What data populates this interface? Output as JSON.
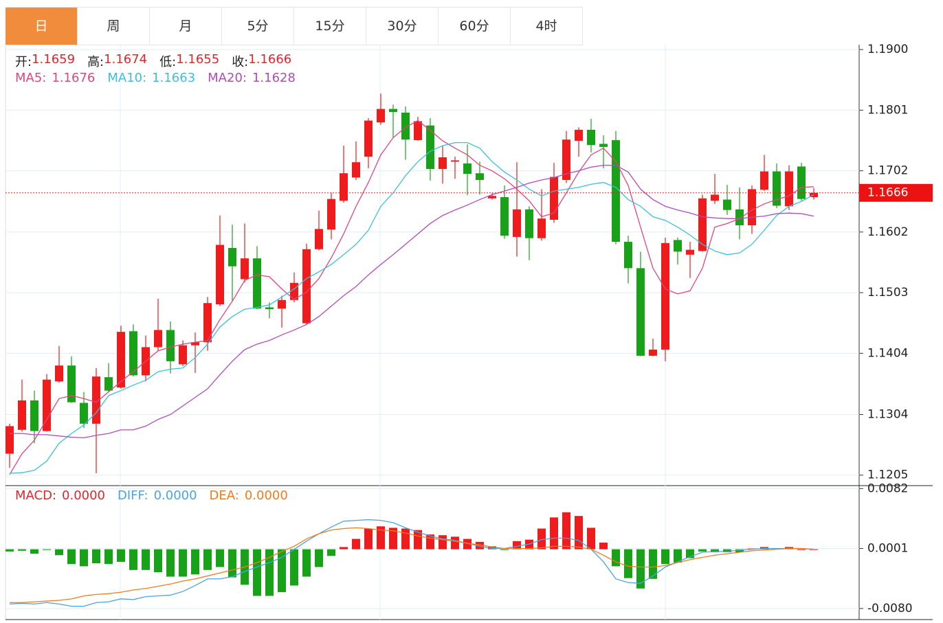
{
  "tabs": [
    "日",
    "周",
    "月",
    "5分",
    "15分",
    "30分",
    "60分",
    "4时"
  ],
  "active_tab": 0,
  "chart_data": [
    {
      "type": "candlestick",
      "ylim": [
        1.1189,
        1.1908
      ],
      "yticks": [
        {
          "value": 1.19,
          "label": "1.1900"
        },
        1.1801,
        1.1702,
        1.1602,
        1.1503,
        1.1404,
        1.1304,
        1.1205
      ],
      "grid": true,
      "up_color": "#ee1c1c",
      "down_color": "#1aa11a",
      "last_price": 1.1666,
      "ohlc_legend": [
        {
          "label": "开:",
          "value": 1.1659
        },
        {
          "label": "高:",
          "value": 1.1674
        },
        {
          "label": "低:",
          "value": 1.1655
        },
        {
          "label": "收:",
          "value": 1.1666
        }
      ],
      "open": [
        1.124,
        1.1279,
        1.1327,
        1.1277,
        1.1358,
        1.1384,
        1.1323,
        1.1289,
        1.1365,
        1.1348,
        1.144,
        1.1368,
        1.1414,
        1.1442,
        1.1386,
        1.1417,
        1.1422,
        1.1484,
        1.1576,
        1.1525,
        1.1559,
        1.1479,
        1.1477,
        1.1491,
        1.1453,
        1.1574,
        1.1606,
        1.1653,
        1.1691,
        1.1725,
        1.1781,
        1.1803,
        1.1797,
        1.1752,
        1.1776,
        1.1705,
        1.1717,
        1.1714,
        1.1698,
        1.1657,
        1.1659,
        1.1594,
        1.1639,
        1.1592,
        1.1622,
        1.1687,
        1.1751,
        1.1769,
        1.1746,
        1.1752,
        1.1586,
        1.1543,
        1.14,
        1.141,
        1.1589,
        1.1565,
        1.1571,
        1.1653,
        1.1655,
        1.1639,
        1.1613,
        1.1671,
        1.1701,
        1.1644,
        1.1709,
        1.1659
      ],
      "high": [
        1.1289,
        1.1361,
        1.1343,
        1.137,
        1.1416,
        1.1399,
        1.1341,
        1.138,
        1.1388,
        1.1449,
        1.1451,
        1.1433,
        1.1493,
        1.1456,
        1.1425,
        1.1438,
        1.1496,
        1.1629,
        1.1614,
        1.1616,
        1.1579,
        1.1487,
        1.1498,
        1.1536,
        1.1583,
        1.1637,
        1.1666,
        1.1743,
        1.175,
        1.1788,
        1.1828,
        1.181,
        1.1807,
        1.179,
        1.1788,
        1.1743,
        1.1725,
        1.1745,
        1.1717,
        1.1666,
        1.1678,
        1.1716,
        1.1644,
        1.1672,
        1.1715,
        1.1767,
        1.1773,
        1.1787,
        1.176,
        1.1767,
        1.1596,
        1.157,
        1.1428,
        1.1593,
        1.1593,
        1.1586,
        1.1663,
        1.1697,
        1.1679,
        1.1675,
        1.1678,
        1.1728,
        1.1714,
        1.1711,
        1.1715,
        1.1674
      ],
      "low": [
        1.1217,
        1.1276,
        1.1257,
        1.1276,
        1.1356,
        1.1323,
        1.1282,
        1.1208,
        1.1341,
        1.1346,
        1.1366,
        1.1358,
        1.1408,
        1.1371,
        1.1383,
        1.1372,
        1.1408,
        1.1481,
        1.1489,
        1.152,
        1.1476,
        1.1461,
        1.1446,
        1.1487,
        1.1451,
        1.1572,
        1.159,
        1.165,
        1.1687,
        1.1706,
        1.1777,
        1.1756,
        1.172,
        1.1751,
        1.1686,
        1.1681,
        1.1689,
        1.1662,
        1.1663,
        1.1655,
        1.1591,
        1.1562,
        1.1556,
        1.1588,
        1.1617,
        1.1682,
        1.1725,
        1.1732,
        1.1706,
        1.1582,
        1.1518,
        1.1399,
        1.1399,
        1.1391,
        1.1549,
        1.1527,
        1.157,
        1.1648,
        1.163,
        1.159,
        1.1599,
        1.1669,
        1.1641,
        1.1638,
        1.1653,
        1.1655
      ],
      "close": [
        1.1285,
        1.1327,
        1.1277,
        1.1361,
        1.1384,
        1.1324,
        1.1289,
        1.1366,
        1.1343,
        1.1439,
        1.1368,
        1.1414,
        1.1442,
        1.1391,
        1.1417,
        1.1422,
        1.1486,
        1.1581,
        1.1546,
        1.1559,
        1.1477,
        1.1476,
        1.1491,
        1.1519,
        1.1574,
        1.1607,
        1.1656,
        1.1698,
        1.1716,
        1.1784,
        1.1803,
        1.1798,
        1.1753,
        1.1783,
        1.1705,
        1.1724,
        1.1719,
        1.1697,
        1.1687,
        1.1661,
        1.1596,
        1.1639,
        1.1592,
        1.1624,
        1.1692,
        1.1753,
        1.1769,
        1.1744,
        1.1741,
        1.1586,
        1.1543,
        1.14,
        1.141,
        1.1584,
        1.157,
        1.1573,
        1.1657,
        1.1663,
        1.1638,
        1.1613,
        1.1672,
        1.1701,
        1.1645,
        1.1701,
        1.1656,
        1.1666
      ],
      "series": [
        {
          "name": "MA5:",
          "color": "#e0457b",
          "current": 1.1676,
          "values": [
            1.1206,
            1.124,
            1.1262,
            1.1296,
            1.133,
            1.1335,
            1.133,
            1.1324,
            1.1341,
            1.1358,
            1.1374,
            1.1391,
            1.1408,
            1.1414,
            1.1419,
            1.1422,
            1.1425,
            1.1459,
            1.1489,
            1.1523,
            1.1532,
            1.1529,
            1.1509,
            1.1492,
            1.1504,
            1.1526,
            1.156,
            1.1599,
            1.1644,
            1.1683,
            1.1728,
            1.1756,
            1.1773,
            1.1784,
            1.1768,
            1.1751,
            1.1739,
            1.1728,
            1.1711,
            1.1702,
            1.1689,
            1.1672,
            1.1653,
            1.1627,
            1.1633,
            1.1666,
            1.17,
            1.1728,
            1.1739,
            1.1717,
            1.1678,
            1.161,
            1.1543,
            1.1509,
            1.1501,
            1.1506,
            1.1543,
            1.161,
            1.1616,
            1.1624,
            1.1638,
            1.1648,
            1.1655,
            1.1661,
            1.1675,
            1.1676
          ]
        },
        {
          "name": "MA10:",
          "color": "#3bbfe0",
          "current": 1.1663,
          "values": [
            1.1208,
            1.1209,
            1.1213,
            1.1228,
            1.1257,
            1.1273,
            1.1287,
            1.1307,
            1.1335,
            1.1343,
            1.1352,
            1.136,
            1.1374,
            1.1378,
            1.138,
            1.1397,
            1.1419,
            1.1447,
            1.1464,
            1.1476,
            1.1479,
            1.1483,
            1.1496,
            1.1509,
            1.1526,
            1.1537,
            1.1549,
            1.1565,
            1.1582,
            1.1605,
            1.1644,
            1.1666,
            1.1694,
            1.1717,
            1.1734,
            1.1743,
            1.1748,
            1.1748,
            1.1739,
            1.1717,
            1.17,
            1.1687,
            1.1672,
            1.1661,
            1.1669,
            1.1672,
            1.1675,
            1.168,
            1.1683,
            1.1675,
            1.1655,
            1.1644,
            1.1627,
            1.1621,
            1.161,
            1.1597,
            1.1582,
            1.1571,
            1.1565,
            1.1568,
            1.1582,
            1.1605,
            1.1629,
            1.1644,
            1.1652,
            1.1663
          ]
        },
        {
          "name": "MA20:",
          "color": "#b04cb8",
          "current": 1.1628,
          "values": [
            1.1273,
            1.1273,
            1.1271,
            1.1271,
            1.1269,
            1.1267,
            1.1266,
            1.127,
            1.1273,
            1.1279,
            1.1279,
            1.1285,
            1.1296,
            1.1304,
            1.1318,
            1.1332,
            1.1346,
            1.1369,
            1.1391,
            1.141,
            1.1419,
            1.1425,
            1.1434,
            1.1442,
            1.1451,
            1.1464,
            1.1481,
            1.1498,
            1.1513,
            1.1532,
            1.1549,
            1.1565,
            1.1582,
            1.1599,
            1.1616,
            1.1629,
            1.1638,
            1.1646,
            1.1655,
            1.1663,
            1.1669,
            1.1675,
            1.1682,
            1.1687,
            1.1691,
            1.1697,
            1.1702,
            1.1708,
            1.1711,
            1.1711,
            1.17,
            1.1672,
            1.1655,
            1.1644,
            1.1638,
            1.1633,
            1.1627,
            1.1625,
            1.1624,
            1.1624,
            1.1626,
            1.1628,
            1.1632,
            1.1633,
            1.1632,
            1.1628
          ]
        }
      ]
    },
    {
      "type": "macd",
      "ylim": [
        -0.0095,
        0.0086
      ],
      "yticks": [
        0.0082,
        0.0001,
        {
          "value": -0.008,
          "label": "-0.0080"
        }
      ],
      "grid": true,
      "histogram": {
        "name": "MACD:",
        "color": "#e0262b",
        "current": {
          "value": 0,
          "label": "0.0000"
        },
        "up_color": "#ee1c1c",
        "down_color": "#1aa11a",
        "values": [
          -0.0003,
          -0.0002,
          -0.0006,
          -0.0001,
          -0.0008,
          -0.002,
          -0.0023,
          -0.0019,
          -0.002,
          -0.0017,
          -0.0028,
          -0.0028,
          -0.0031,
          -0.0037,
          -0.0037,
          -0.0034,
          -0.0028,
          -0.0024,
          -0.0038,
          -0.0048,
          -0.0063,
          -0.0063,
          -0.0058,
          -0.0049,
          -0.0037,
          -0.0024,
          -0.0009,
          0.0003,
          0.0014,
          0.0028,
          0.0031,
          0.0029,
          0.0028,
          0.0026,
          0.002,
          0.0019,
          0.0017,
          0.0014,
          0.001,
          0.0004,
          -0.0001,
          0.0011,
          0.0013,
          0.0028,
          0.0043,
          0.005,
          0.0045,
          0.0029,
          0.0009,
          -0.0023,
          -0.0039,
          -0.0053,
          -0.004,
          -0.002,
          -0.0018,
          -0.0012,
          -0.0003,
          -0.0004,
          -0.0004,
          -0.0004,
          0.0001,
          0.0003,
          0.0001,
          0.0003,
          0,
          0
        ]
      },
      "series": [
        {
          "name": "DIFF:",
          "color": "#4ba3e3",
          "current": {
            "value": 0,
            "label": "0.0000"
          },
          "values": [
            -0.0074,
            -0.0073,
            -0.0074,
            -0.0072,
            -0.0074,
            -0.0077,
            -0.0077,
            -0.0072,
            -0.0071,
            -0.0067,
            -0.0068,
            -0.0064,
            -0.0063,
            -0.0062,
            -0.0057,
            -0.0049,
            -0.004,
            -0.004,
            -0.0037,
            -0.003,
            -0.0024,
            -0.0018,
            -0.0011,
            0,
            0.0011,
            0.0021,
            0.003,
            0.0038,
            0.0039,
            0.004,
            0.0039,
            0.0036,
            0.0029,
            0.0023,
            0.0018,
            0.0014,
            0.0012,
            0.0008,
            0.0004,
            0.0001,
            0.0001,
            0.0004,
            0.0007,
            0.0013,
            0.0015,
            0.0015,
            0.0012,
            0,
            -0.0017,
            -0.004,
            -0.0045,
            -0.0046,
            -0.0036,
            -0.0024,
            -0.0017,
            -0.001,
            -0.0004,
            -0.0003,
            -0.0003,
            -0.0001,
            0,
            0.0001,
            0.0001,
            0.0001,
            0.0001,
            0
          ]
        },
        {
          "name": "DEA:",
          "color": "#f07c1e",
          "current": {
            "value": 0,
            "label": "0.0000"
          },
          "values": [
            -0.0072,
            -0.0072,
            -0.0071,
            -0.007,
            -0.0069,
            -0.0067,
            -0.0063,
            -0.0061,
            -0.006,
            -0.0058,
            -0.0055,
            -0.0053,
            -0.005,
            -0.0047,
            -0.0043,
            -0.004,
            -0.0036,
            -0.0032,
            -0.0028,
            -0.0024,
            -0.0018,
            -0.0011,
            -0.0003,
            0.0004,
            0.0014,
            0.0021,
            0.0026,
            0.0028,
            0.0029,
            0.0028,
            0.0026,
            0.0025,
            0.0022,
            0.0018,
            0.0015,
            0.0013,
            0.0011,
            0.0008,
            0.0006,
            0.0003,
            0.0001,
            0.0001,
            0.0001,
            0.0002,
            0.0004,
            0.0004,
            0.0003,
            0,
            -0.0008,
            -0.0017,
            -0.0023,
            -0.0024,
            -0.0024,
            -0.0022,
            -0.0018,
            -0.0014,
            -0.0011,
            -0.0008,
            -0.0006,
            -0.0004,
            -0.0002,
            -0.0001,
            0,
            0.0001,
            0.0001,
            0
          ]
        }
      ]
    }
  ]
}
